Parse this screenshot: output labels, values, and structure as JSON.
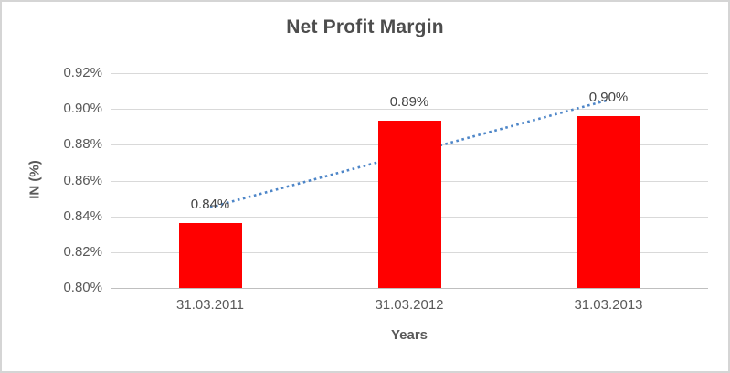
{
  "chart_data": {
    "type": "bar",
    "title": "Net Profit Margin",
    "categories": [
      "31.03.2011",
      "31.03.2012",
      "31.03.2013"
    ],
    "series": [
      {
        "name": "Net Profit Margin",
        "values": [
          0.84,
          0.89,
          0.9
        ]
      }
    ],
    "values_precise_pct": [
      0.8365,
      0.8935,
      0.896
    ],
    "data_labels": [
      "0.84%",
      "0.89%",
      "0.90%"
    ],
    "xlabel": "Years",
    "ylabel": "IN (%)",
    "ylim": [
      0.8,
      0.92
    ],
    "ytick_step": 0.02,
    "ytick_labels": [
      "0.92%",
      "0.90%",
      "0.88%",
      "0.86%",
      "0.84%",
      "0.82%",
      "0.80%"
    ],
    "grid": true,
    "legend": "none",
    "bar_color": "#FF0000",
    "trendline": {
      "type": "linear",
      "style": "dotted",
      "color": "#4E86C8",
      "start_pct": 0.845,
      "end_pct": 0.905
    }
  },
  "colors": {
    "bar": "#FF0000",
    "trendline": "#4E86C8",
    "gridline": "#D9D9D9",
    "axis_line": "#BFBFBF",
    "tick_text": "#595959",
    "title_text": "#4D4D4D",
    "border": "#D5D5D5",
    "background": "#FFFFFF"
  }
}
